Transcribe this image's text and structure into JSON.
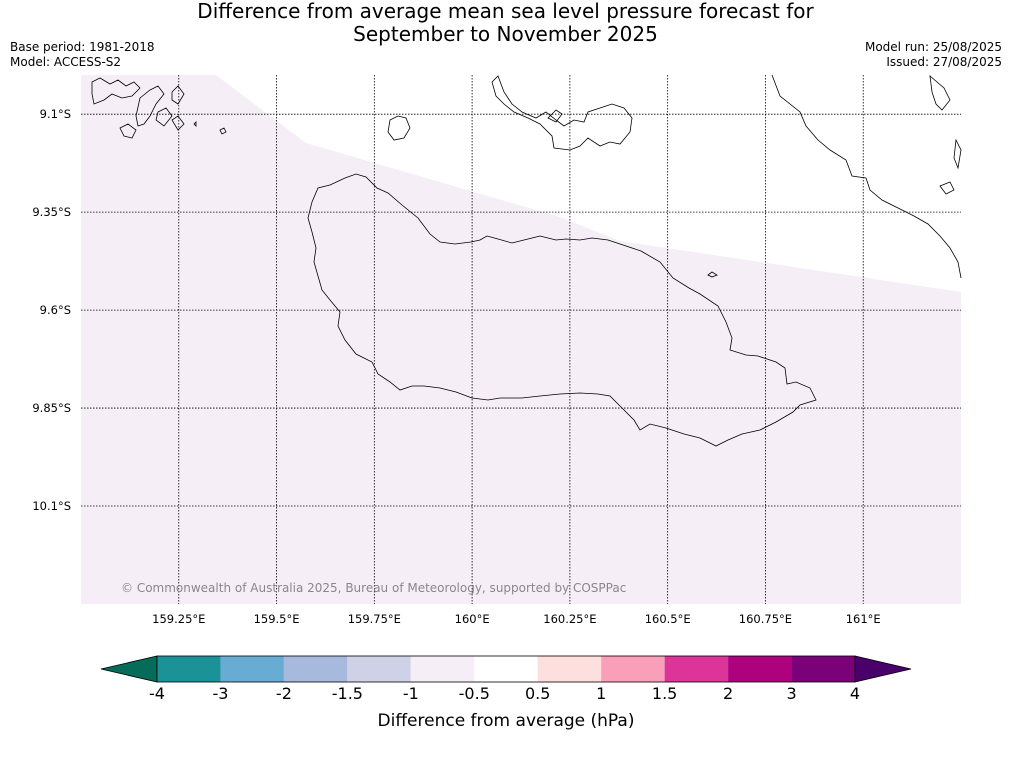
{
  "title_line1": "Difference from average mean sea level pressure forecast for",
  "title_line2": "September to November 2025",
  "base_period": "Base period: 1981-2018",
  "model": "Model: ACCESS-S2",
  "model_run": "Model run: 25/08/2025",
  "issued": "Issued: 27/08/2025",
  "copyright": "© Commonwealth of Australia 2025, Bureau of Meteorology, supported by COSPPac",
  "map": {
    "lon_range": [
      159.0,
      161.25
    ],
    "lat_range": [
      -10.35,
      -9.0
    ],
    "lon_ticks": [
      159.25,
      159.5,
      159.75,
      160.0,
      160.25,
      160.5,
      160.75,
      161.0
    ],
    "lon_labels": [
      "159.25°E",
      "159.5°E",
      "159.75°E",
      "160°E",
      "160.25°E",
      "160.5°E",
      "160.75°E",
      "161°E"
    ],
    "lat_ticks": [
      -9.1,
      -9.35,
      -9.6,
      -9.85,
      -10.1
    ],
    "lat_labels": [
      "9.1°S",
      "9.35°S",
      "9.6°S",
      "9.85°S",
      "10.1°S"
    ],
    "filled_anomaly_range": "-1 to -0.5",
    "fill_color": "#f5eef7",
    "other_color": "#ffffff"
  },
  "colorbar": {
    "label": "Difference from average (hPa)",
    "levels": [
      "-4",
      "-3",
      "-2",
      "-1.5",
      "-1",
      "-0.5",
      "0.5",
      "1",
      "1.5",
      "2",
      "3",
      "4"
    ],
    "colors": [
      "#1a9297",
      "#68abd3",
      "#a7b9dc",
      "#cfd1e6",
      "#f5eef7",
      "#ffffff",
      "#fde0dd",
      "#f99fba",
      "#dc3499",
      "#ae017e",
      "#7a0177"
    ],
    "under_color": "#046c59",
    "over_color": "#49006a"
  }
}
